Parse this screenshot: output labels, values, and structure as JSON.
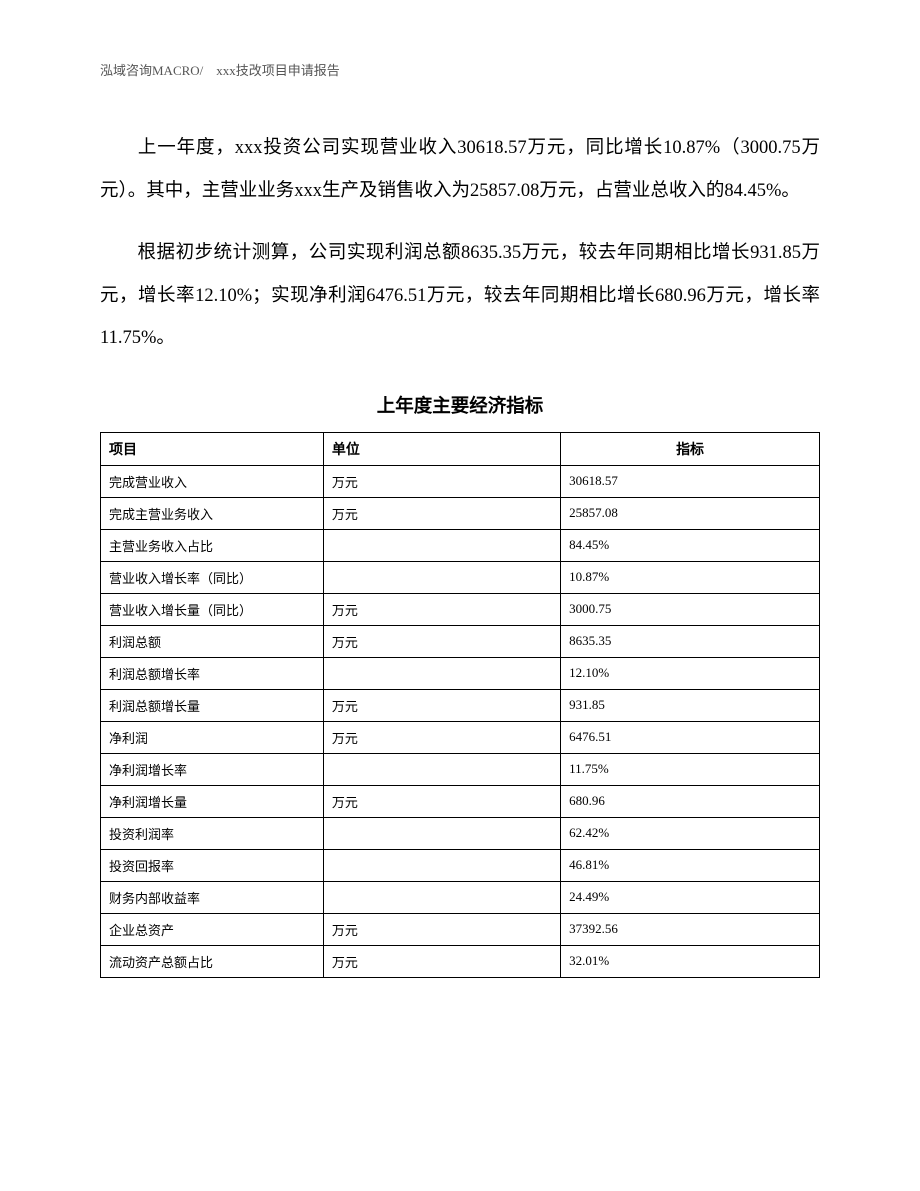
{
  "header": "泓域咨询MACRO/　xxx技改项目申请报告",
  "paragraphs": {
    "p1": "上一年度，xxx投资公司实现营业收入30618.57万元，同比增长10.87%（3000.75万元）。其中，主营业业务xxx生产及销售收入为25857.08万元，占营业总收入的84.45%。",
    "p2": "根据初步统计测算，公司实现利润总额8635.35万元，较去年同期相比增长931.85万元，增长率12.10%；实现净利润6476.51万元，较去年同期相比增长680.96万元，增长率11.75%。"
  },
  "table": {
    "title": "上年度主要经济指标",
    "columns": [
      "项目",
      "单位",
      "指标"
    ],
    "rows": [
      [
        "完成营业收入",
        "万元",
        "30618.57"
      ],
      [
        "完成主营业务收入",
        "万元",
        "25857.08"
      ],
      [
        "主营业务收入占比",
        "",
        "84.45%"
      ],
      [
        "营业收入增长率（同比）",
        "",
        "10.87%"
      ],
      [
        "营业收入增长量（同比）",
        "万元",
        "3000.75"
      ],
      [
        "利润总额",
        "万元",
        "8635.35"
      ],
      [
        "利润总额增长率",
        "",
        "12.10%"
      ],
      [
        "利润总额增长量",
        "万元",
        "931.85"
      ],
      [
        "净利润",
        "万元",
        "6476.51"
      ],
      [
        "净利润增长率",
        "",
        "11.75%"
      ],
      [
        "净利润增长量",
        "万元",
        "680.96"
      ],
      [
        "投资利润率",
        "",
        "62.42%"
      ],
      [
        "投资回报率",
        "",
        "46.81%"
      ],
      [
        "财务内部收益率",
        "",
        "24.49%"
      ],
      [
        "企业总资产",
        "万元",
        "37392.56"
      ],
      [
        "流动资产总额占比",
        "万元",
        "32.01%"
      ]
    ]
  }
}
